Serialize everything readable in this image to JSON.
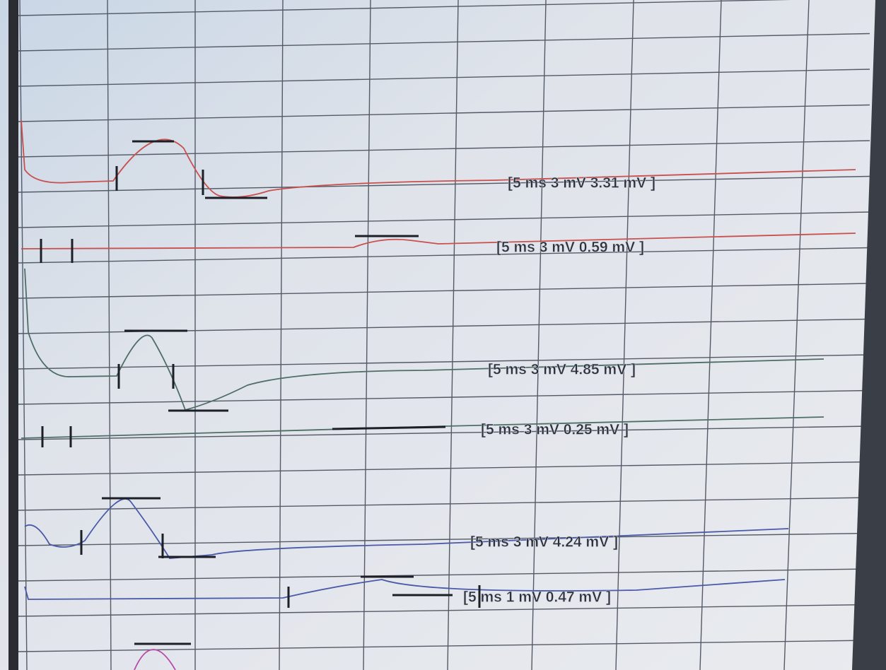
{
  "traces": [
    {
      "label": "[5 ms   3 mV   3.31 mV ]",
      "color": "#c8504e"
    },
    {
      "label": "[5 ms   3 mV   0.59 mV ]",
      "color": "#c8504e"
    },
    {
      "label": "[5 ms   3 mV   4.85 mV ]",
      "color": "#4e6e66"
    },
    {
      "label": "[5 ms   3 mV   0.25 mV ]",
      "color": "#4e6e66"
    },
    {
      "label": "[5 ms   3 mV   4.24 mV ]",
      "color": "#4a5aa8"
    },
    {
      "label": "[5 ms   1 mV   0.47 mV ]",
      "color": "#4a5aa8"
    },
    {
      "color": "#b84aa8"
    }
  ]
}
